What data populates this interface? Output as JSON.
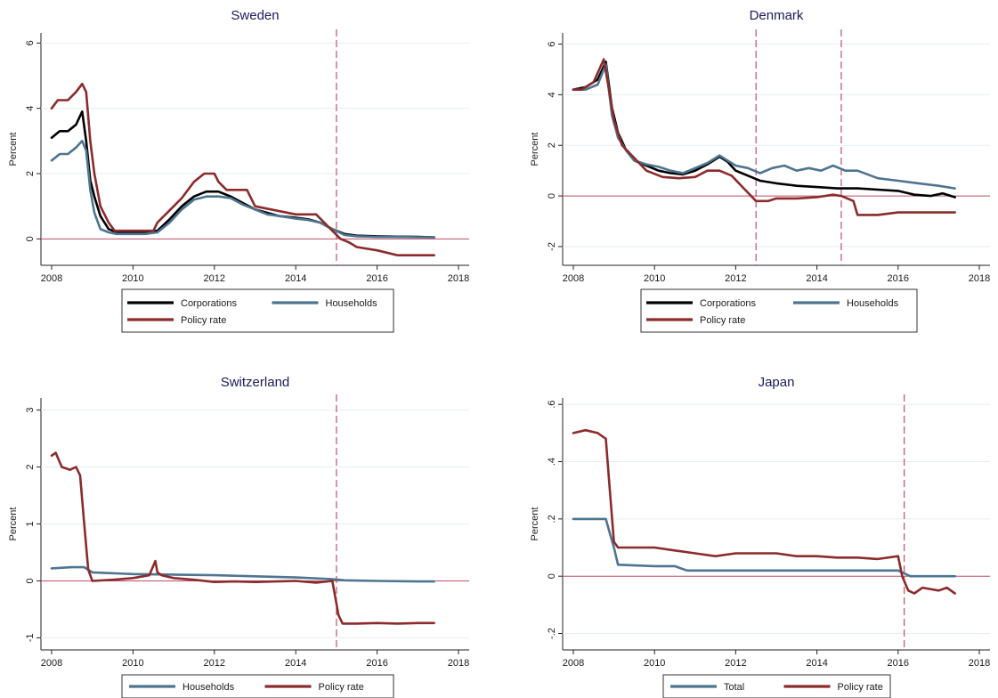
{
  "chart_data": [
    {
      "type": "line",
      "title": "Sweden",
      "ylabel": "Percent",
      "xlim": [
        2008,
        2018
      ],
      "ylim": [
        -0.7,
        6.2
      ],
      "xticks": [
        "2008",
        "2010",
        "2012",
        "2014",
        "2016",
        "2018"
      ],
      "yticks": [
        {
          "v": 0,
          "label": "0"
        },
        {
          "v": 2,
          "label": "2"
        },
        {
          "v": 4,
          "label": "4"
        },
        {
          "v": 6,
          "label": "6"
        }
      ],
      "vlines": [
        2015.0
      ],
      "grid": true,
      "legend_position": "bottom",
      "series": [
        {
          "name": "Corporations",
          "color": "#000000",
          "x": [
            2008.0,
            2008.2,
            2008.4,
            2008.6,
            2008.75,
            2008.85,
            2008.95,
            2009.05,
            2009.2,
            2009.4,
            2009.6,
            2010.0,
            2010.3,
            2010.6,
            2010.9,
            2011.2,
            2011.5,
            2011.8,
            2012.1,
            2012.4,
            2012.7,
            2013.0,
            2013.3,
            2013.6,
            2014.0,
            2014.3,
            2014.6,
            2014.9,
            2015.2,
            2015.5,
            2016.0,
            2016.5,
            2017.0,
            2017.4
          ],
          "y": [
            3.1,
            3.3,
            3.3,
            3.5,
            3.9,
            3.0,
            1.8,
            1.3,
            0.7,
            0.3,
            0.2,
            0.2,
            0.2,
            0.25,
            0.6,
            1.0,
            1.3,
            1.45,
            1.45,
            1.3,
            1.1,
            0.9,
            0.8,
            0.7,
            0.65,
            0.6,
            0.5,
            0.3,
            0.15,
            0.1,
            0.08,
            0.07,
            0.06,
            0.05
          ]
        },
        {
          "name": "Households",
          "color": "#4e7590",
          "x": [
            2008.0,
            2008.2,
            2008.4,
            2008.6,
            2008.75,
            2008.85,
            2008.95,
            2009.05,
            2009.2,
            2009.4,
            2009.6,
            2010.0,
            2010.3,
            2010.6,
            2010.9,
            2011.2,
            2011.5,
            2011.8,
            2012.1,
            2012.4,
            2012.7,
            2013.0,
            2013.3,
            2013.6,
            2014.0,
            2014.3,
            2014.6,
            2014.9,
            2015.2,
            2015.5,
            2016.0,
            2016.5,
            2017.0,
            2017.4
          ],
          "y": [
            2.4,
            2.6,
            2.6,
            2.8,
            3.0,
            2.7,
            1.5,
            0.8,
            0.3,
            0.2,
            0.15,
            0.15,
            0.15,
            0.2,
            0.5,
            0.9,
            1.2,
            1.3,
            1.3,
            1.25,
            1.05,
            0.9,
            0.75,
            0.7,
            0.62,
            0.58,
            0.5,
            0.3,
            0.12,
            0.08,
            0.06,
            0.06,
            0.05,
            0.05
          ]
        },
        {
          "name": "Policy rate",
          "color": "#8b2b2b",
          "x": [
            2008.0,
            2008.15,
            2008.4,
            2008.6,
            2008.75,
            2008.85,
            2008.95,
            2009.05,
            2009.2,
            2009.4,
            2009.55,
            2010.0,
            2010.5,
            2010.6,
            2010.8,
            2011.0,
            2011.2,
            2011.5,
            2011.75,
            2012.0,
            2012.1,
            2012.3,
            2012.8,
            2013.0,
            2014.0,
            2014.5,
            2014.9,
            2015.1,
            2015.3,
            2015.5,
            2016.0,
            2016.5,
            2017.0,
            2017.4
          ],
          "y": [
            4.0,
            4.25,
            4.25,
            4.5,
            4.75,
            4.5,
            3.0,
            2.0,
            1.0,
            0.5,
            0.25,
            0.25,
            0.25,
            0.5,
            0.75,
            1.0,
            1.25,
            1.75,
            2.0,
            2.0,
            1.75,
            1.5,
            1.5,
            1.0,
            0.75,
            0.75,
            0.25,
            0.0,
            -0.1,
            -0.25,
            -0.35,
            -0.5,
            -0.5,
            -0.5
          ]
        }
      ]
    },
    {
      "type": "line",
      "title": "Denmark",
      "ylabel": "Percent",
      "xlim": [
        2008,
        2018
      ],
      "ylim": [
        -2.6,
        6.3
      ],
      "xticks": [
        "2008",
        "2010",
        "2012",
        "2014",
        "2016",
        "2018"
      ],
      "yticks": [
        {
          "v": -2,
          "label": "-2"
        },
        {
          "v": 0,
          "label": "0"
        },
        {
          "v": 2,
          "label": "2"
        },
        {
          "v": 4,
          "label": "4"
        },
        {
          "v": 6,
          "label": "6"
        }
      ],
      "vlines": [
        2012.5,
        2014.6
      ],
      "grid": true,
      "legend_position": "bottom",
      "series": [
        {
          "name": "Corporations",
          "color": "#000000",
          "x": [
            2008.0,
            2008.3,
            2008.6,
            2008.8,
            2008.95,
            2009.1,
            2009.3,
            2009.5,
            2009.8,
            2010.1,
            2010.4,
            2010.7,
            2011.0,
            2011.3,
            2011.6,
            2011.8,
            2012.0,
            2012.3,
            2012.6,
            2013.0,
            2013.5,
            2014.0,
            2014.5,
            2015.0,
            2015.5,
            2016.0,
            2016.4,
            2016.8,
            2017.1,
            2017.4
          ],
          "y": [
            4.2,
            4.3,
            4.6,
            5.3,
            3.5,
            2.5,
            1.8,
            1.4,
            1.2,
            1.0,
            0.9,
            0.85,
            1.0,
            1.25,
            1.55,
            1.35,
            1.0,
            0.8,
            0.6,
            0.5,
            0.4,
            0.35,
            0.3,
            0.3,
            0.25,
            0.2,
            0.05,
            0.0,
            0.1,
            -0.05
          ]
        },
        {
          "name": "Households",
          "color": "#4e7590",
          "x": [
            2008.0,
            2008.3,
            2008.6,
            2008.8,
            2008.95,
            2009.1,
            2009.3,
            2009.5,
            2009.8,
            2010.1,
            2010.4,
            2010.7,
            2011.0,
            2011.3,
            2011.6,
            2011.8,
            2012.0,
            2012.3,
            2012.6,
            2012.9,
            2013.2,
            2013.5,
            2013.8,
            2014.1,
            2014.4,
            2014.7,
            2015.0,
            2015.5,
            2016.0,
            2016.5,
            2017.0,
            2017.4
          ],
          "y": [
            4.2,
            4.2,
            4.4,
            5.2,
            3.2,
            2.3,
            1.8,
            1.4,
            1.25,
            1.15,
            1.0,
            0.9,
            1.1,
            1.3,
            1.6,
            1.4,
            1.2,
            1.1,
            0.9,
            1.1,
            1.2,
            1.0,
            1.1,
            1.0,
            1.2,
            1.0,
            1.0,
            0.7,
            0.6,
            0.5,
            0.4,
            0.3
          ]
        },
        {
          "name": "Policy rate",
          "color": "#8b2b2b",
          "x": [
            2008.0,
            2008.2,
            2008.5,
            2008.75,
            2008.9,
            2009.0,
            2009.2,
            2009.5,
            2009.8,
            2010.2,
            2010.6,
            2011.0,
            2011.3,
            2011.6,
            2011.9,
            2012.2,
            2012.5,
            2012.8,
            2013.0,
            2013.5,
            2014.0,
            2014.4,
            2014.6,
            2014.9,
            2015.0,
            2015.5,
            2016.0,
            2016.5,
            2017.0,
            2017.4
          ],
          "y": [
            4.2,
            4.2,
            4.5,
            5.4,
            4.0,
            3.0,
            2.0,
            1.5,
            1.0,
            0.75,
            0.7,
            0.75,
            1.0,
            1.0,
            0.8,
            0.3,
            -0.2,
            -0.2,
            -0.1,
            -0.1,
            -0.05,
            0.05,
            0.0,
            -0.2,
            -0.75,
            -0.75,
            -0.65,
            -0.65,
            -0.65,
            -0.65
          ]
        }
      ]
    },
    {
      "type": "line",
      "title": "Switzerland",
      "ylabel": "Percent",
      "xlim": [
        2008,
        2018
      ],
      "ylim": [
        -1.15,
        3.15
      ],
      "xticks": [
        "2008",
        "2010",
        "2012",
        "2014",
        "2016",
        "2018"
      ],
      "yticks": [
        {
          "v": -1,
          "label": "-1"
        },
        {
          "v": 0,
          "label": "0"
        },
        {
          "v": 1,
          "label": "1"
        },
        {
          "v": 2,
          "label": "2"
        },
        {
          "v": 3,
          "label": "3"
        }
      ],
      "vlines": [
        2015.0
      ],
      "grid": true,
      "legend_position": "bottom",
      "series": [
        {
          "name": "Households",
          "color": "#4e7590",
          "x": [
            2008.0,
            2008.5,
            2008.8,
            2009.0,
            2010.0,
            2011.0,
            2012.0,
            2013.0,
            2014.0,
            2014.9,
            2015.2,
            2016.0,
            2017.0,
            2017.4
          ],
          "y": [
            0.22,
            0.24,
            0.24,
            0.15,
            0.12,
            0.11,
            0.1,
            0.08,
            0.06,
            0.03,
            0.01,
            0.0,
            -0.01,
            -0.01
          ]
        },
        {
          "name": "Policy rate",
          "color": "#8b2b2b",
          "x": [
            2008.0,
            2008.1,
            2008.25,
            2008.45,
            2008.6,
            2008.7,
            2008.8,
            2008.9,
            2009.0,
            2009.5,
            2010.0,
            2010.4,
            2010.55,
            2010.6,
            2010.7,
            2011.0,
            2011.5,
            2012.0,
            2012.5,
            2013.0,
            2013.5,
            2014.0,
            2014.5,
            2014.9,
            2015.05,
            2015.15,
            2015.5,
            2016.0,
            2016.5,
            2017.0,
            2017.4
          ],
          "y": [
            2.2,
            2.25,
            2.0,
            1.95,
            2.0,
            1.85,
            1.0,
            0.2,
            0.0,
            0.02,
            0.05,
            0.1,
            0.35,
            0.15,
            0.1,
            0.05,
            0.02,
            -0.02,
            -0.01,
            -0.02,
            -0.01,
            0.0,
            -0.03,
            0.0,
            -0.6,
            -0.75,
            -0.75,
            -0.74,
            -0.75,
            -0.74,
            -0.74
          ]
        }
      ]
    },
    {
      "type": "line",
      "title": "Japan",
      "ylabel": "Percent",
      "xlim": [
        2008,
        2018
      ],
      "ylim": [
        -0.245,
        0.61
      ],
      "xticks": [
        "2008",
        "2010",
        "2012",
        "2014",
        "2016",
        "2018"
      ],
      "yticks": [
        {
          "v": -0.2,
          "label": "-.2"
        },
        {
          "v": 0,
          "label": "0"
        },
        {
          "v": 0.2,
          "label": ".2"
        },
        {
          "v": 0.4,
          "label": ".4"
        },
        {
          "v": 0.6,
          "label": ".6"
        }
      ],
      "vlines": [
        2016.15
      ],
      "grid": true,
      "legend_position": "bottom",
      "series": [
        {
          "name": "Total",
          "color": "#4e7590",
          "x": [
            2008.0,
            2008.5,
            2008.8,
            2008.9,
            2009.0,
            2009.1,
            2010.0,
            2010.5,
            2010.8,
            2011.0,
            2012.0,
            2013.0,
            2014.0,
            2015.0,
            2016.0,
            2016.15,
            2016.3,
            2016.5,
            2017.0,
            2017.4
          ],
          "y": [
            0.2,
            0.2,
            0.2,
            0.15,
            0.1,
            0.04,
            0.035,
            0.035,
            0.02,
            0.02,
            0.02,
            0.02,
            0.02,
            0.02,
            0.02,
            0.01,
            0.0,
            0.0,
            0.0,
            0.0
          ]
        },
        {
          "name": "Policy rate",
          "color": "#8b2b2b",
          "x": [
            2008.0,
            2008.3,
            2008.6,
            2008.8,
            2008.9,
            2009.0,
            2009.1,
            2009.5,
            2010.0,
            2010.5,
            2011.0,
            2011.5,
            2012.0,
            2012.5,
            2013.0,
            2013.5,
            2014.0,
            2014.5,
            2015.0,
            2015.5,
            2016.0,
            2016.1,
            2016.25,
            2016.4,
            2016.6,
            2017.0,
            2017.2,
            2017.4
          ],
          "y": [
            0.5,
            0.51,
            0.5,
            0.48,
            0.3,
            0.12,
            0.1,
            0.1,
            0.1,
            0.09,
            0.08,
            0.07,
            0.08,
            0.08,
            0.08,
            0.07,
            0.07,
            0.065,
            0.065,
            0.06,
            0.07,
            0.0,
            -0.05,
            -0.06,
            -0.04,
            -0.05,
            -0.04,
            -0.06
          ]
        }
      ]
    }
  ]
}
